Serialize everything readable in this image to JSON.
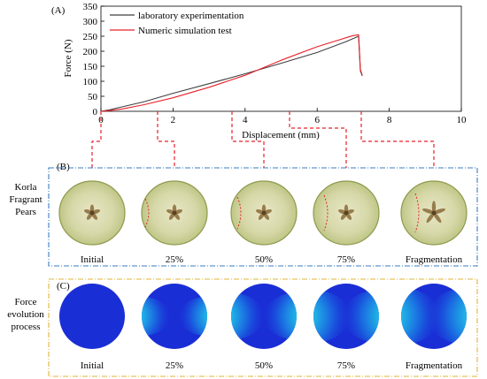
{
  "panels": {
    "a": "(A)",
    "b": "(B)",
    "c": "(C)"
  },
  "chart_data": {
    "type": "line",
    "xlabel": "Displacement (mm)",
    "ylabel": "Force (N)",
    "xlim": [
      0,
      10
    ],
    "ylim": [
      0,
      350
    ],
    "xticks": [
      0,
      2,
      4,
      6,
      8,
      10
    ],
    "yticks": [
      0,
      50,
      100,
      150,
      200,
      250,
      300,
      350
    ],
    "legend_position": "top-left",
    "grid": false,
    "series": [
      {
        "name": "laboratory experimentation",
        "color": "#404040",
        "x": [
          0,
          0.2,
          0.6,
          1.2,
          2.0,
          3.0,
          4.0,
          5.0,
          6.0,
          6.8,
          7.15,
          7.2,
          7.25
        ],
        "y": [
          0,
          4,
          15,
          32,
          60,
          92,
          125,
          160,
          196,
          232,
          250,
          135,
          118
        ]
      },
      {
        "name": "Numeric simulation test",
        "color": "#e8202a",
        "x": [
          0,
          0.2,
          0.6,
          1.2,
          2.0,
          3.0,
          4.0,
          5.0,
          6.0,
          6.8,
          7.0,
          7.15,
          7.2,
          7.25
        ],
        "y": [
          0,
          2,
          8,
          22,
          45,
          80,
          120,
          170,
          215,
          245,
          252,
          255,
          140,
          120
        ]
      }
    ]
  },
  "specimen_label": "Korla\nFragrant\nPears",
  "force_label": "Force\nevolution\nprocess",
  "stages": [
    "Initial",
    "25%",
    "50%",
    "75%",
    "Fragmentation"
  ],
  "colors": {
    "frame_b": "#3a7ec2",
    "frame_c": "#e2b43a",
    "connector": "#e8202a"
  }
}
